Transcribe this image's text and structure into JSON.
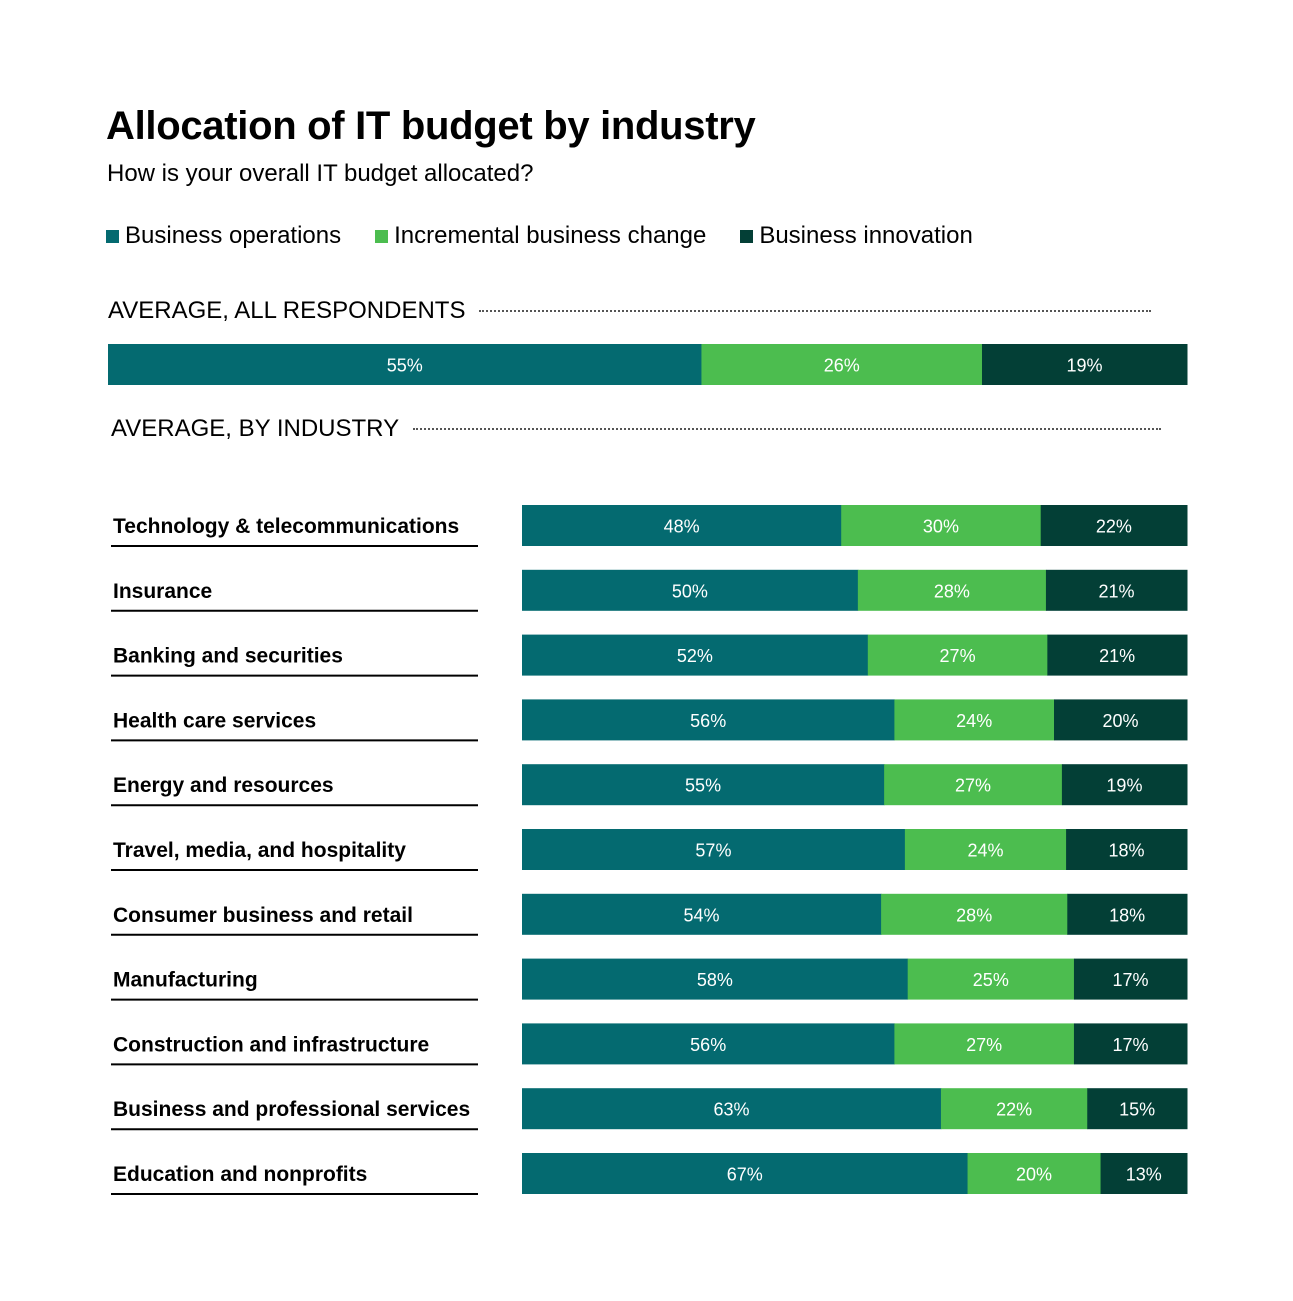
{
  "title": "Allocation of IT budget by industry",
  "subtitle": "How is your overall IT budget allocated?",
  "legend": [
    {
      "name": "Business operations",
      "color": "#046a70"
    },
    {
      "name": "Incremental business change",
      "color": "#4cbd4f"
    },
    {
      "name": "Business innovation",
      "color": "#033f36"
    }
  ],
  "sections": {
    "overall": "AVERAGE, ALL RESPONDENTS",
    "by_industry": "AVERAGE, BY INDUSTRY"
  },
  "chart_data": {
    "type": "bar",
    "orientation": "horizontal",
    "stacked": true,
    "unit": "%",
    "title": "Allocation of IT budget by industry",
    "subtitle": "How is your overall IT budget allocated?",
    "series_names": [
      "Business operations",
      "Incremental business change",
      "Business innovation"
    ],
    "series_colors": [
      "#046a70",
      "#4cbd4f",
      "#033f36"
    ],
    "overall": {
      "label": "AVERAGE, ALL RESPONDENTS",
      "values": [
        55,
        26,
        19
      ]
    },
    "categories": [
      "Technology & telecommunications",
      "Insurance",
      "Banking and securities",
      "Health care services",
      "Energy and resources",
      "Travel, media, and hospitality",
      "Consumer business and retail",
      "Manufacturing",
      "Construction and infrastructure",
      "Business and professional services",
      "Education and nonprofits"
    ],
    "series": [
      {
        "name": "Business operations",
        "values": [
          48,
          50,
          52,
          56,
          55,
          57,
          54,
          58,
          56,
          63,
          67
        ]
      },
      {
        "name": "Incremental business change",
        "values": [
          30,
          28,
          27,
          24,
          27,
          24,
          28,
          25,
          27,
          22,
          20
        ]
      },
      {
        "name": "Business innovation",
        "values": [
          22,
          21,
          21,
          20,
          19,
          18,
          18,
          17,
          17,
          15,
          13
        ]
      }
    ]
  }
}
